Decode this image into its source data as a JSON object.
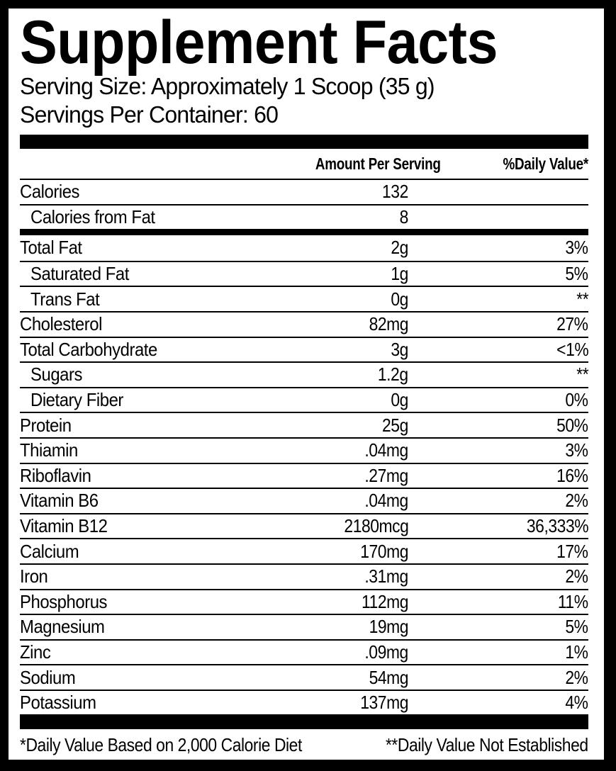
{
  "header": {
    "title": "Supplement Facts",
    "serving_size": "Serving Size: Approximately 1 Scoop (35 g)",
    "servings_per_container": "Servings Per Container: 60"
  },
  "table": {
    "columns": {
      "amount": "Amount Per Serving",
      "daily_value": "%Daily Value*"
    },
    "rows": [
      {
        "name": "Calories",
        "amount": "132",
        "dv": ""
      },
      {
        "name": "Calories from Fat",
        "amount": "8",
        "dv": ""
      },
      {
        "name": "Total Fat",
        "amount": "2g",
        "dv": "3%"
      },
      {
        "name": "Saturated Fat",
        "amount": "1g",
        "dv": "5%"
      },
      {
        "name": "Trans Fat",
        "amount": "0g",
        "dv": "**"
      },
      {
        "name": "Cholesterol",
        "amount": "82mg",
        "dv": "27%"
      },
      {
        "name": "Total Carbohydrate",
        "amount": "3g",
        "dv": "<1%"
      },
      {
        "name": "Sugars",
        "amount": "1.2g",
        "dv": "**"
      },
      {
        "name": "Dietary Fiber",
        "amount": "0g",
        "dv": "0%"
      },
      {
        "name": "Protein",
        "amount": "25g",
        "dv": "50%"
      },
      {
        "name": "Thiamin",
        "amount": ".04mg",
        "dv": "3%"
      },
      {
        "name": "Riboflavin",
        "amount": ".27mg",
        "dv": "16%"
      },
      {
        "name": "Vitamin B6",
        "amount": ".04mg",
        "dv": "2%"
      },
      {
        "name": "Vitamin B12",
        "amount": "2180mcg",
        "dv": "36,333%"
      },
      {
        "name": "Calcium",
        "amount": "170mg",
        "dv": "17%"
      },
      {
        "name": "Iron",
        "amount": ".31mg",
        "dv": "2%"
      },
      {
        "name": "Phosphorus",
        "amount": "112mg",
        "dv": "11%"
      },
      {
        "name": "Magnesium",
        "amount": "19mg",
        "dv": "5%"
      },
      {
        "name": "Zinc",
        "amount": ".09mg",
        "dv": "1%"
      },
      {
        "name": "Sodium",
        "amount": "54mg",
        "dv": "2%"
      },
      {
        "name": "Potassium",
        "amount": "137mg",
        "dv": "4%"
      }
    ]
  },
  "footnotes": {
    "daily_value": "*Daily Value Based on 2,000 Calorie Diet",
    "not_established": "**Daily Value Not Established"
  },
  "colors": {
    "text": "#000000",
    "background": "#ffffff",
    "frame": "#000000"
  }
}
